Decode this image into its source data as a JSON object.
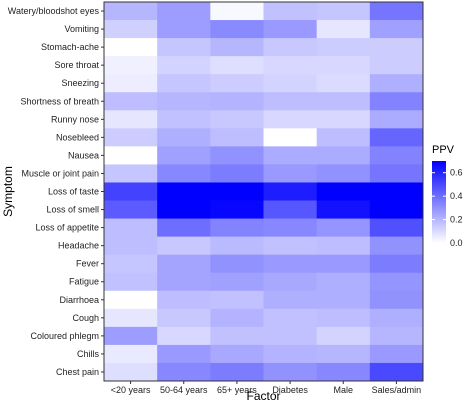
{
  "chart_data": {
    "type": "heatmap",
    "xlabel": "Factor",
    "ylabel": "Symptom",
    "legend_title": "PPV",
    "legend_position": "right",
    "color_scale": {
      "low": "#ffffff",
      "high": "#0000ff",
      "min": 0,
      "max": 0.7
    },
    "legend_ticks": [
      "0.6",
      "0.4",
      "0.2",
      "0.0"
    ],
    "legend_tick_values": [
      0.6,
      0.4,
      0.2,
      0.0
    ],
    "x_categories": [
      "<20 years",
      "50-64 years",
      "65+ years",
      "Diabetes",
      "Male",
      "Sales/admin"
    ],
    "y_categories": [
      "Watery/bloodshot eyes",
      "Vomiting",
      "Stomach-ache",
      "Sore throat",
      "Sneezing",
      "Shortness of breath",
      "Runny nose",
      "Nosebleed",
      "Nausea",
      "Muscle or joint pain",
      "Loss of taste",
      "Loss of smell",
      "Loss of appetite",
      "Headache",
      "Fever",
      "Fatigue",
      "Diarrhoea",
      "Cough",
      "Coloured phlegm",
      "Chills",
      "Chest pain"
    ],
    "values": [
      [
        0.2,
        0.27,
        0.02,
        0.17,
        0.16,
        0.38
      ],
      [
        0.13,
        0.27,
        0.32,
        0.28,
        0.07,
        0.26
      ],
      [
        0.0,
        0.16,
        0.2,
        0.15,
        0.14,
        0.14
      ],
      [
        0.04,
        0.12,
        0.09,
        0.11,
        0.11,
        0.14
      ],
      [
        0.05,
        0.16,
        0.14,
        0.12,
        0.1,
        0.22
      ],
      [
        0.18,
        0.2,
        0.21,
        0.18,
        0.18,
        0.34
      ],
      [
        0.07,
        0.17,
        0.15,
        0.11,
        0.11,
        0.23
      ],
      [
        0.14,
        0.22,
        0.18,
        0.0,
        0.18,
        0.42
      ],
      [
        0.0,
        0.26,
        0.3,
        0.23,
        0.23,
        0.34
      ],
      [
        0.16,
        0.33,
        0.36,
        0.28,
        0.3,
        0.38
      ],
      [
        0.52,
        0.78,
        0.75,
        0.62,
        0.7,
        0.82
      ],
      [
        0.45,
        0.72,
        0.68,
        0.46,
        0.65,
        0.78
      ],
      [
        0.18,
        0.4,
        0.34,
        0.33,
        0.29,
        0.48
      ],
      [
        0.18,
        0.15,
        0.19,
        0.17,
        0.18,
        0.3
      ],
      [
        0.16,
        0.25,
        0.3,
        0.28,
        0.28,
        0.36
      ],
      [
        0.17,
        0.25,
        0.26,
        0.24,
        0.22,
        0.29
      ],
      [
        0.0,
        0.18,
        0.17,
        0.22,
        0.22,
        0.3
      ],
      [
        0.07,
        0.15,
        0.21,
        0.17,
        0.18,
        0.22
      ],
      [
        0.27,
        0.11,
        0.17,
        0.17,
        0.12,
        0.2
      ],
      [
        0.06,
        0.28,
        0.24,
        0.21,
        0.2,
        0.28
      ],
      [
        0.09,
        0.33,
        0.36,
        0.3,
        0.33,
        0.5
      ]
    ]
  }
}
